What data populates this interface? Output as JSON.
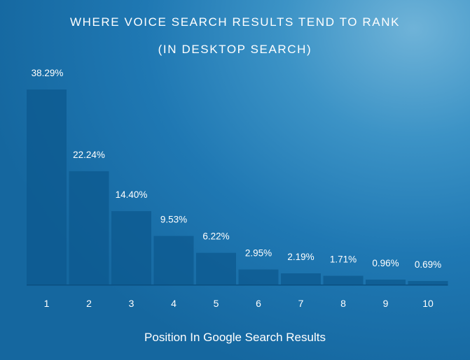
{
  "chart_data": {
    "type": "bar",
    "title": "WHERE VOICE SEARCH RESULTS TEND TO RANK",
    "subtitle": "(IN DESKTOP SEARCH)",
    "xlabel": "Position In Google Search Results",
    "ylabel": "",
    "categories": [
      "1",
      "2",
      "3",
      "4",
      "5",
      "6",
      "7",
      "8",
      "9",
      "10"
    ],
    "values": [
      38.29,
      22.24,
      14.4,
      9.53,
      6.22,
      2.95,
      2.19,
      1.71,
      0.96,
      0.69
    ],
    "value_labels": [
      "38.29%",
      "22.24%",
      "14.40%",
      "9.53%",
      "6.22%",
      "2.95%",
      "2.19%",
      "1.71%",
      "0.96%",
      "0.69%"
    ],
    "ylim": [
      0,
      38.29
    ],
    "grid": false,
    "legend": "none",
    "colors": {
      "bar": "#0d5a8f",
      "text": "#ffffff",
      "baseline": "#0a4f80"
    }
  }
}
